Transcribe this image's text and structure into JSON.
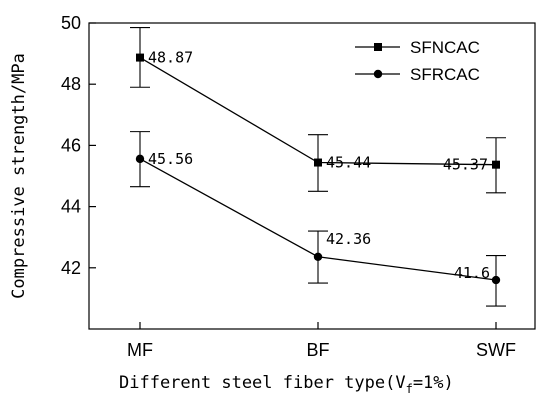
{
  "chart_data": {
    "type": "line",
    "categories": [
      "MF",
      "BF",
      "SWF"
    ],
    "xlabel": "Different steel fiber type(V",
    "xlabel_sub": "f",
    "xlabel_tail": "=1%)",
    "ylabel": "Compressive strength/MPa",
    "ylim": [
      40,
      50
    ],
    "yticks": [
      42,
      44,
      46,
      48,
      50
    ],
    "legend_position": "top-right",
    "grid": false,
    "series": [
      {
        "name": "SFNCAC",
        "marker": "square",
        "values": [
          48.87,
          45.44,
          45.37
        ],
        "labels": [
          "48.87",
          "45.44",
          "45.37"
        ],
        "error_low": [
          47.9,
          44.5,
          44.45
        ],
        "error_high": [
          49.85,
          46.35,
          46.25
        ]
      },
      {
        "name": "SFRCAC",
        "marker": "circle",
        "values": [
          45.56,
          42.36,
          41.6
        ],
        "labels": [
          "45.56",
          "42.36",
          "41.6"
        ],
        "error_low": [
          44.65,
          41.5,
          40.75
        ],
        "error_high": [
          46.45,
          43.2,
          42.4
        ]
      }
    ]
  }
}
